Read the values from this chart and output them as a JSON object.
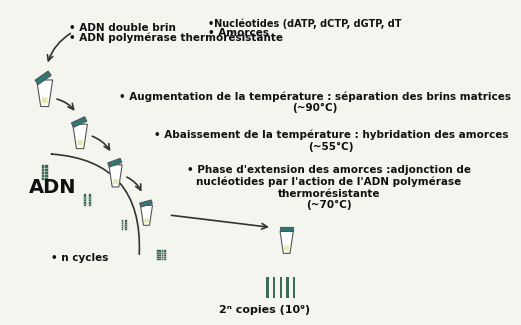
{
  "bg_color": "#f5f5f0",
  "teal_color": "#2d7a7a",
  "teal_dark": "#1a5a5a",
  "tube_color": "#ffffff",
  "tube_outline": "#555555",
  "liquid_color": "#e8e8b0",
  "dna_color": "#3a6a5a",
  "arrow_color": "#333333",
  "text_color": "#111111",
  "text1": "• ADN double brin",
  "text2": "• ADN polymérase thermorésistante",
  "text3": "•Nucléotides (dATP, dCTP, dGTP, dT",
  "text4": "• Amorces",
  "text5": "• Augmentation de la température : séparation des brins matrices\n(~90°C)",
  "text6": "• Abaissement de la température : hybridation des amorces\n(~55°C)",
  "text7": "• Phase d'extension des amorces :adjonction de\nnucléotides par l'action de l'ADN polymérase\nthermorésistante\n(~70°C)",
  "text8": "• n cycles",
  "text9": "ADN",
  "text10": "2ⁿ copies (10⁹)"
}
